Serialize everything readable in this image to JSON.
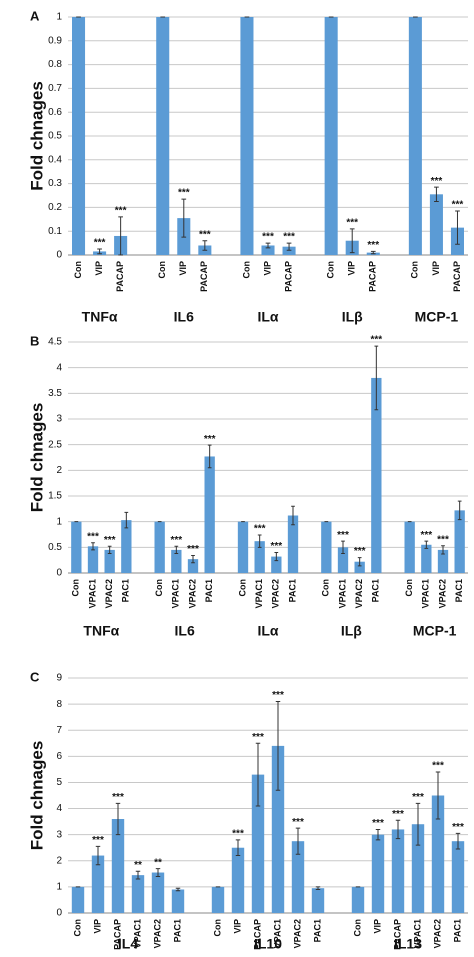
{
  "chart_data": [
    {
      "type": "bar",
      "panel_label": "A",
      "y_label": "Fold chnages",
      "color": "#5b9bd5",
      "grid": true,
      "ylim": [
        0,
        1
      ],
      "yticks": [
        0,
        0.1,
        0.2,
        0.3,
        0.4,
        0.5,
        0.6,
        0.7,
        0.8,
        0.9,
        1
      ],
      "groups": [
        {
          "name": "TNFα",
          "categories": [
            "Con",
            "VIP",
            "PACAP"
          ],
          "values": [
            1,
            0.015,
            0.08
          ],
          "errors": [
            0,
            0.01,
            0.08
          ],
          "significance": [
            null,
            "***",
            "***"
          ]
        },
        {
          "name": "IL6",
          "categories": [
            "Con",
            "VIP",
            "PACAP"
          ],
          "values": [
            1,
            0.155,
            0.04
          ],
          "errors": [
            0,
            0.08,
            0.02
          ],
          "significance": [
            null,
            "***",
            "***"
          ]
        },
        {
          "name": "ILα",
          "categories": [
            "Con",
            "VIP",
            "PACAP"
          ],
          "values": [
            1,
            0.04,
            0.035
          ],
          "errors": [
            0,
            0.01,
            0.015
          ],
          "significance": [
            null,
            "***",
            "***"
          ]
        },
        {
          "name": "ILβ",
          "categories": [
            "Con",
            "VIP",
            "PACAP"
          ],
          "values": [
            1,
            0.06,
            0.01
          ],
          "errors": [
            0,
            0.05,
            0.005
          ],
          "significance": [
            null,
            "***",
            "***"
          ]
        },
        {
          "name": "MCP-1",
          "categories": [
            "Con",
            "VIP",
            "PACAP"
          ],
          "values": [
            1,
            0.255,
            0.115
          ],
          "errors": [
            0,
            0.03,
            0.07
          ],
          "significance": [
            null,
            "***",
            "***"
          ]
        }
      ]
    },
    {
      "type": "bar",
      "panel_label": "B",
      "y_label": "Fold chnages",
      "color": "#5b9bd5",
      "grid": true,
      "ylim": [
        0,
        4.5
      ],
      "yticks": [
        0,
        0.5,
        1,
        1.5,
        2,
        2.5,
        3,
        3.5,
        4,
        4.5
      ],
      "groups": [
        {
          "name": "TNFα",
          "categories": [
            "Con",
            "VPAC1",
            "VPAC2",
            "PAC1"
          ],
          "values": [
            1,
            0.52,
            0.45,
            1.03
          ],
          "errors": [
            0,
            0.07,
            0.07,
            0.15
          ],
          "significance": [
            null,
            "***",
            "***",
            null
          ]
        },
        {
          "name": "IL6",
          "categories": [
            "Con",
            "VPAC1",
            "VPAC2",
            "PAC1"
          ],
          "values": [
            1,
            0.45,
            0.27,
            2.27
          ],
          "errors": [
            0,
            0.07,
            0.07,
            0.22
          ],
          "significance": [
            null,
            "***",
            "***",
            "***"
          ]
        },
        {
          "name": "ILα",
          "categories": [
            "Con",
            "VPAC1",
            "VPAC2",
            "PAC1"
          ],
          "values": [
            1,
            0.62,
            0.32,
            1.12
          ],
          "errors": [
            0,
            0.12,
            0.08,
            0.18
          ],
          "significance": [
            null,
            "***",
            "***",
            null
          ]
        },
        {
          "name": "ILβ",
          "categories": [
            "Con",
            "VPAC1",
            "VPAC2",
            "PAC1"
          ],
          "values": [
            1,
            0.5,
            0.22,
            3.8
          ],
          "errors": [
            0,
            0.12,
            0.08,
            0.62
          ],
          "significance": [
            null,
            "***",
            "***",
            "***"
          ]
        },
        {
          "name": "MCP-1",
          "categories": [
            "Con",
            "VPAC1",
            "VPAC2",
            "PAC1"
          ],
          "values": [
            1,
            0.55,
            0.45,
            1.22
          ],
          "errors": [
            0,
            0.07,
            0.08,
            0.18
          ],
          "significance": [
            null,
            "***",
            "***",
            null
          ]
        }
      ]
    },
    {
      "type": "bar",
      "panel_label": "C",
      "y_label": "Fold chnages",
      "color": "#5b9bd5",
      "grid": true,
      "ylim": [
        0,
        9
      ],
      "yticks": [
        0,
        1,
        2,
        3,
        4,
        5,
        6,
        7,
        8,
        9
      ],
      "groups": [
        {
          "name": "IL4",
          "categories": [
            "Con",
            "VIP",
            "PACAP",
            "VPAC1",
            "VPAC2",
            "PAC1"
          ],
          "values": [
            1,
            2.2,
            3.6,
            1.45,
            1.55,
            0.9
          ],
          "errors": [
            0,
            0.35,
            0.6,
            0.15,
            0.15,
            0.05
          ],
          "significance": [
            null,
            "***",
            "***",
            "**",
            "**",
            null
          ]
        },
        {
          "name": "IL10",
          "categories": [
            "Con",
            "VIP",
            "PACAP",
            "VPAC1",
            "VPAC2",
            "PAC1"
          ],
          "values": [
            1,
            2.5,
            5.3,
            6.4,
            2.75,
            0.95
          ],
          "errors": [
            0,
            0.3,
            1.2,
            1.7,
            0.5,
            0.05
          ],
          "significance": [
            null,
            "***",
            "***",
            "***",
            "***",
            null
          ]
        },
        {
          "name": "IL13",
          "categories": [
            "Con",
            "VIP",
            "PACAP",
            "VPAC1",
            "VPAC2",
            "PAC1"
          ],
          "values": [
            1,
            3.0,
            3.2,
            3.4,
            4.5,
            2.75
          ],
          "errors": [
            0,
            0.2,
            0.35,
            0.8,
            0.9,
            0.3
          ],
          "significance": [
            null,
            "***",
            "***",
            "***",
            "***",
            "***"
          ]
        }
      ]
    }
  ]
}
